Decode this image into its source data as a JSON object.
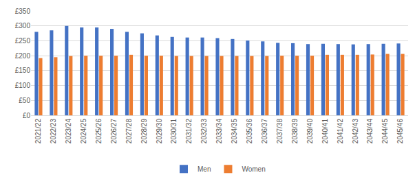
{
  "chart_data": {
    "type": "bar",
    "categories": [
      "2021/22",
      "2022/23",
      "2023/24",
      "2024/25",
      "2025/26",
      "2026/27",
      "2027/28",
      "2028/29",
      "2029/30",
      "2030/31",
      "2031/32",
      "2032/33",
      "2033/34",
      "2034/35",
      "2035/36",
      "2036/37",
      "2037/38",
      "2038/39",
      "2039/40",
      "2040/41",
      "2041/42",
      "2042/43",
      "2043/44",
      "2044/45",
      "2045/46"
    ],
    "series": [
      {
        "name": "Men",
        "color": "#4472c4",
        "values": [
          280,
          285,
          300,
          295,
          295,
          290,
          280,
          275,
          268,
          263,
          261,
          261,
          259,
          256,
          251,
          248,
          243,
          242,
          239,
          240,
          239,
          238,
          239,
          240,
          241
        ]
      },
      {
        "name": "Women",
        "color": "#ed7d31",
        "values": [
          192,
          195,
          199,
          200,
          200,
          200,
          203,
          200,
          200,
          199,
          199,
          199,
          199,
          199,
          199,
          199,
          200,
          200,
          200,
          203,
          203,
          203,
          204,
          206,
          206
        ]
      }
    ],
    "ylim": [
      0,
      350
    ],
    "yticks": [
      {
        "value": 0,
        "label": "£0"
      },
      {
        "value": 50,
        "label": "£50"
      },
      {
        "value": 100,
        "label": "£100"
      },
      {
        "value": 150,
        "label": "£150"
      },
      {
        "value": 200,
        "label": "£200"
      },
      {
        "value": 250,
        "label": "£250"
      },
      {
        "value": 300,
        "label": "£300"
      },
      {
        "value": 350,
        "label": "£350"
      }
    ],
    "grid": true,
    "legend": "bottom"
  }
}
